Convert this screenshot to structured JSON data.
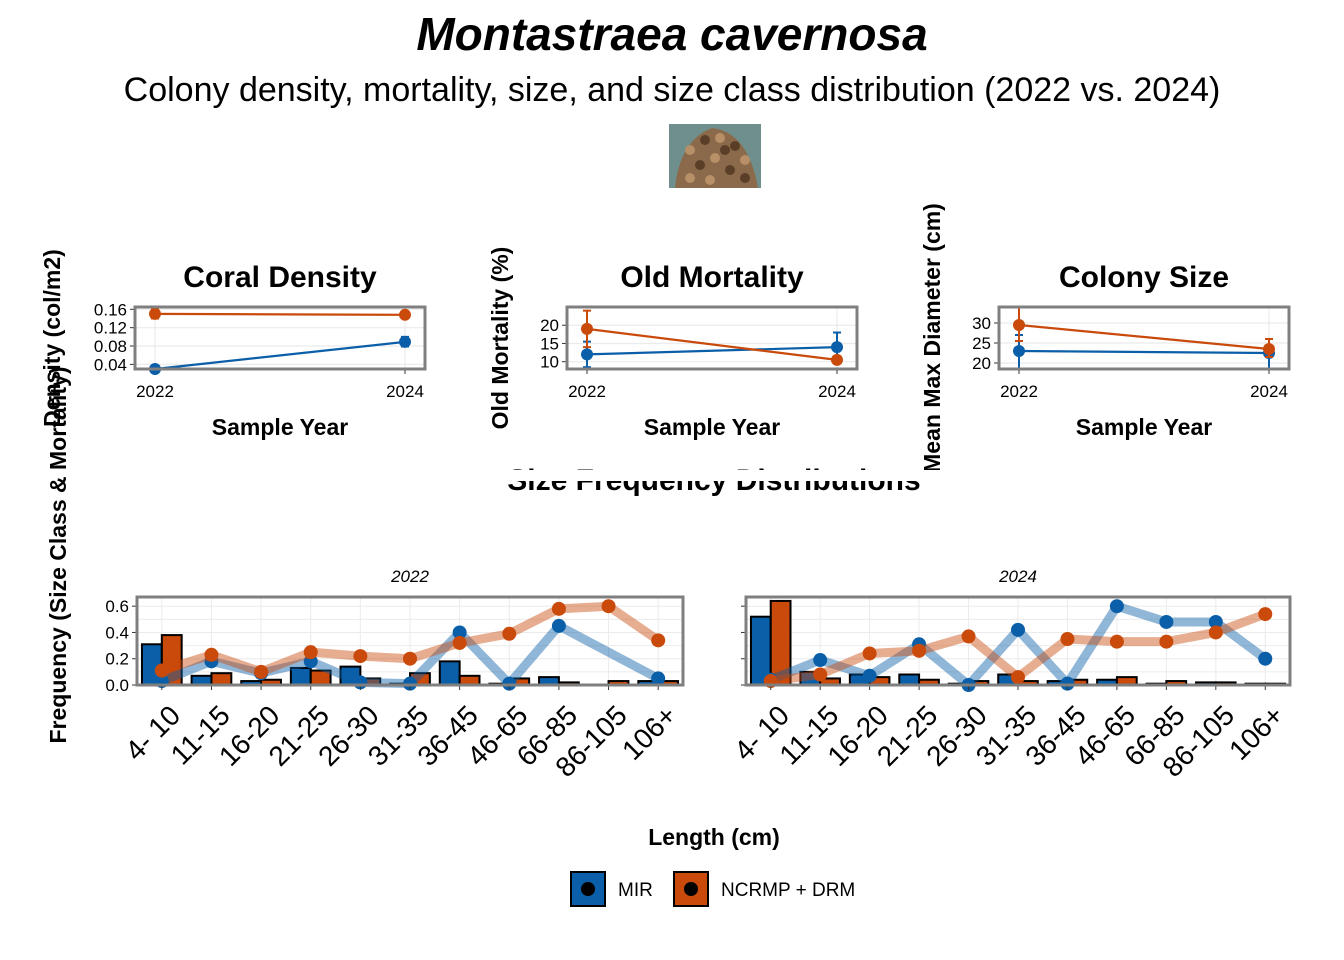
{
  "title": "Montastraea cavernosa",
  "subtitle": "Colony density, mortality, size, and size class distribution (2022 vs. 2024)",
  "image_alt": "coral-photo",
  "colors": {
    "MIR": "#0a5fa8",
    "NCRMP + DRM": "#c94a0a",
    "panel_border": "#7f7f7f",
    "grid": "#ebebeb"
  },
  "legend": {
    "items": [
      "MIR",
      "NCRMP + DRM"
    ]
  },
  "chart_data": [
    {
      "type": "line",
      "title": "Coral Density",
      "xlabel": "Sample Year",
      "ylabel": "Density (col/m2)",
      "x": [
        "2022",
        "2024"
      ],
      "yticks": [
        "0.04",
        "0.08",
        "0.12",
        "0.16"
      ],
      "ylim": [
        0.03,
        0.165
      ],
      "series": [
        {
          "name": "MIR",
          "values": [
            0.03,
            0.089
          ],
          "err_low": [
            0.03,
            0.079
          ],
          "err_high": [
            0.03,
            0.1
          ]
        },
        {
          "name": "NCRMP + DRM",
          "values": [
            0.15,
            0.148
          ],
          "err_low": [
            0.14,
            0.143
          ],
          "err_high": [
            0.16,
            0.153
          ]
        }
      ]
    },
    {
      "type": "line",
      "title": "Old Mortality",
      "xlabel": "Sample Year",
      "ylabel": "Old Mortality (%)",
      "x": [
        "2022",
        "2024"
      ],
      "yticks": [
        "10",
        "15",
        "20"
      ],
      "ylim": [
        8,
        25
      ],
      "series": [
        {
          "name": "MIR",
          "values": [
            12,
            14
          ],
          "err_low": [
            8.5,
            10
          ],
          "err_high": [
            15.5,
            18
          ]
        },
        {
          "name": "NCRMP + DRM",
          "values": [
            19,
            10.5
          ],
          "err_low": [
            14,
            9.5
          ],
          "err_high": [
            24,
            11.5
          ]
        }
      ]
    },
    {
      "type": "line",
      "title": "Colony Size",
      "xlabel": "Sample Year",
      "ylabel": "Mean Max Diameter (cm)",
      "x": [
        "2022",
        "2024"
      ],
      "yticks": [
        "20",
        "25",
        "30"
      ],
      "ylim": [
        18.5,
        34
      ],
      "series": [
        {
          "name": "MIR",
          "values": [
            23,
            22.5
          ],
          "err_low": [
            18.5,
            18.5
          ],
          "err_high": [
            27,
            26
          ]
        },
        {
          "name": "NCRMP + DRM",
          "values": [
            29.5,
            23.5
          ],
          "err_low": [
            25.5,
            21.5
          ],
          "err_high": [
            34,
            26
          ]
        }
      ]
    },
    {
      "type": "bar",
      "title": "Size Frequency Distributions",
      "xlabel": "Length (cm)",
      "ylabel": "Frequency (Size Class & Mortality)",
      "categories": [
        "4- 10",
        "11-15",
        "16-20",
        "21-25",
        "26-30",
        "31-35",
        "36-45",
        "46-65",
        "66-85",
        "86-105",
        "106+"
      ],
      "yticks": [
        "0.0",
        "0.2",
        "0.4",
        "0.6"
      ],
      "ylim": [
        0,
        0.67
      ],
      "facets": [
        {
          "label": "2022",
          "bars": [
            {
              "name": "MIR",
              "values": [
                0.31,
                0.07,
                0.03,
                0.13,
                0.14,
                0.01,
                0.18,
                0.01,
                0.06,
                0.0,
                0.03
              ]
            },
            {
              "name": "NCRMP + DRM",
              "values": [
                0.38,
                0.09,
                0.04,
                0.11,
                0.05,
                0.09,
                0.07,
                0.05,
                0.02,
                0.03,
                0.03
              ]
            }
          ],
          "lines": [
            {
              "name": "MIR",
              "values": [
                0.03,
                0.18,
                0.09,
                0.18,
                0.02,
                0.01,
                0.4,
                0.01,
                0.45,
                null,
                0.05
              ]
            },
            {
              "name": "NCRMP + DRM",
              "values": [
                0.11,
                0.23,
                0.1,
                0.25,
                0.22,
                0.2,
                0.32,
                0.39,
                0.58,
                0.6,
                0.34
              ]
            }
          ]
        },
        {
          "label": "2024",
          "bars": [
            {
              "name": "MIR",
              "values": [
                0.52,
                0.1,
                0.08,
                0.08,
                0.01,
                0.08,
                0.03,
                0.04,
                0.01,
                0.02,
                0.01
              ]
            },
            {
              "name": "NCRMP + DRM",
              "values": [
                0.64,
                0.05,
                0.06,
                0.04,
                0.03,
                0.03,
                0.04,
                0.06,
                0.03,
                0.02,
                0.01
              ]
            }
          ],
          "lines": [
            {
              "name": "MIR",
              "values": [
                0.04,
                0.19,
                0.07,
                0.31,
                0.0,
                0.42,
                0.01,
                0.6,
                0.48,
                0.48,
                0.2
              ]
            },
            {
              "name": "NCRMP + DRM",
              "values": [
                0.03,
                0.08,
                0.24,
                0.26,
                0.37,
                0.06,
                0.35,
                0.33,
                0.33,
                0.4,
                0.54
              ]
            }
          ]
        }
      ]
    }
  ]
}
